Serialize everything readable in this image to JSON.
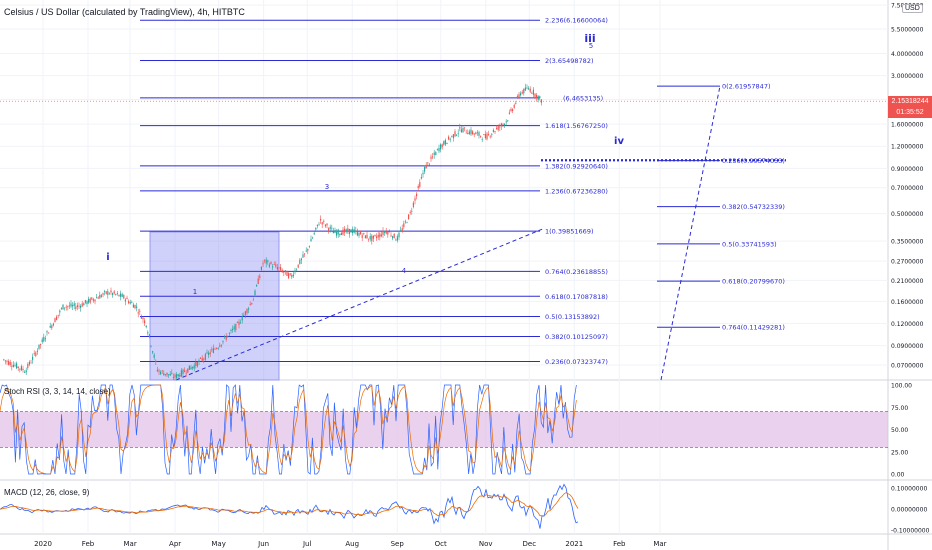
{
  "header": {
    "symbol_title": "Celsius / US Dollar (calculated by TradingView), 4h, HITBTC",
    "currency_badge": "USD"
  },
  "price_tag": {
    "value": "2.15318244",
    "countdown": "01:35:52"
  },
  "colors": {
    "fib_line": "#2b2bd6",
    "fib_label": "#2b2bd6",
    "elliott_label": "#2b2bd6",
    "candle_up": "#26a69a",
    "candle_down": "#ef5350",
    "box_fill": "#9598f5",
    "rsi_k": "#2962ff",
    "rsi_d": "#ef6c00",
    "rsi_band": "#e1bee7",
    "macd_line": "#2962ff",
    "macd_signal": "#ef6c00",
    "grid": "#f0f3fa",
    "axis_text": "#131722"
  },
  "chart_data": [
    {
      "type": "line",
      "title": "Celsius / US Dollar (calculated by TradingView), 4h, HITBTC",
      "y_scale": "log",
      "ylim": [
        0.05,
        7.5
      ],
      "y_ticks": [
        "7.5000000",
        "5.5000000",
        "4.0000000",
        "3.0000000",
        "2.2000000",
        "1.6000000",
        "1.2000000",
        "0.9000000",
        "0.7000000",
        "0.5000000",
        "0.3500000",
        "0.2700000",
        "0.2100000",
        "0.1600000",
        "0.1200000",
        "0.0900000",
        "0.0700000"
      ],
      "x_ticks": [
        "2020",
        "Feb",
        "Mar",
        "Apr",
        "May",
        "Jun",
        "Jul",
        "Aug",
        "Sep",
        "Oct",
        "Nov",
        "Dec",
        "2021",
        "Feb",
        "Mar"
      ],
      "x_range": [
        "2019-12-01",
        "2021-03-20"
      ],
      "series": [
        {
          "x": [
            "2019-12-05",
            "2019-12-20",
            "2020-01-05",
            "2020-01-15",
            "2020-01-25",
            "2020-02-05",
            "2020-02-15",
            "2020-02-25",
            "2020-03-05",
            "2020-03-12",
            "2020-03-20",
            "2020-04-01",
            "2020-04-15",
            "2020-05-01",
            "2020-05-15",
            "2020-05-25",
            "2020-06-01",
            "2020-06-10",
            "2020-06-20",
            "2020-07-01",
            "2020-07-10",
            "2020-07-20",
            "2020-08-01",
            "2020-08-15",
            "2020-08-25",
            "2020-09-01",
            "2020-09-10",
            "2020-09-20",
            "2020-10-01",
            "2020-10-15",
            "2020-11-01",
            "2020-11-15",
            "2020-11-25",
            "2020-12-01",
            "2020-12-10"
          ],
          "values": [
            0.075,
            0.065,
            0.11,
            0.15,
            0.15,
            0.165,
            0.18,
            0.17,
            0.15,
            0.12,
            0.065,
            0.06,
            0.07,
            0.09,
            0.12,
            0.165,
            0.27,
            0.25,
            0.22,
            0.31,
            0.46,
            0.39,
            0.4,
            0.36,
            0.4,
            0.36,
            0.5,
            0.9,
            1.2,
            1.5,
            1.35,
            1.65,
            2.4,
            2.55,
            2.15
          ]
        }
      ]
    },
    {
      "type": "line",
      "title": "Stoch RSI (3, 3, 14, 14, close)",
      "ylim": [
        0,
        100
      ],
      "y_ticks": [
        "100.00",
        "75.00",
        "50.00",
        "25.00",
        "0.00"
      ],
      "band": [
        30,
        70
      ],
      "series": [
        {
          "name": "Stoch RSI",
          "x": [],
          "values": []
        }
      ]
    },
    {
      "type": "line",
      "title": "MACD (12, 26, close, 9)",
      "ylim": [
        -0.17,
        0.17
      ],
      "y_ticks": [
        "0.10000000",
        "0.00000000",
        "-0.10000000"
      ],
      "series": [
        {
          "name": "MACD",
          "x": [],
          "values": []
        }
      ]
    }
  ],
  "fib_retracement": [
    {
      "label": "2.236(6.16600064)",
      "price": 6.166
    },
    {
      "label": "2(3.65498782)",
      "price": 3.655
    },
    {
      "label": "1.618(1.56767250)",
      "price": 1.5677
    },
    {
      "label": "1.382(0.92920640)",
      "price": 0.9292
    },
    {
      "label": "1.236(0.67236280)",
      "price": 0.6724
    },
    {
      "label": "1(0.39851669)",
      "price": 0.3985
    },
    {
      "label": "0.764(0.23618855)",
      "price": 0.2362
    },
    {
      "label": "0.618(0.17087818)",
      "price": 0.1709
    },
    {
      "label": "0.5(0.13153892)",
      "price": 0.1315
    },
    {
      "label": "0.382(0.10125097)",
      "price": 0.1013
    },
    {
      "label": "0.236(0.07323747)",
      "price": 0.0732
    }
  ],
  "fib_partial_label": "(6.4653135)",
  "fib_projection": [
    {
      "label": "0(2.61957847)",
      "price": 2.6196
    },
    {
      "label": "0.236(0.99574053)",
      "price": 0.9957
    },
    {
      "label": "0.382(0.54732339)",
      "price": 0.5473
    },
    {
      "label": "0.5(0.33741593)",
      "price": 0.3374
    },
    {
      "label": "0.618(0.20799670)",
      "price": 0.208
    },
    {
      "label": "0.764(0.11429281)",
      "price": 0.1143
    }
  ],
  "elliott_labels": [
    {
      "text": "i",
      "kind": "roman"
    },
    {
      "text": "iii",
      "kind": "roman"
    },
    {
      "text": "iv",
      "kind": "roman"
    },
    {
      "text": "1",
      "kind": "minor"
    },
    {
      "text": "3",
      "kind": "minor"
    },
    {
      "text": "4",
      "kind": "minor"
    },
    {
      "text": "5",
      "kind": "minor"
    }
  ],
  "indicators": {
    "stoch_label": "Stoch RSI (3, 3, 14, 14, close)",
    "macd_label": "MACD (12, 26, close, 9)"
  }
}
